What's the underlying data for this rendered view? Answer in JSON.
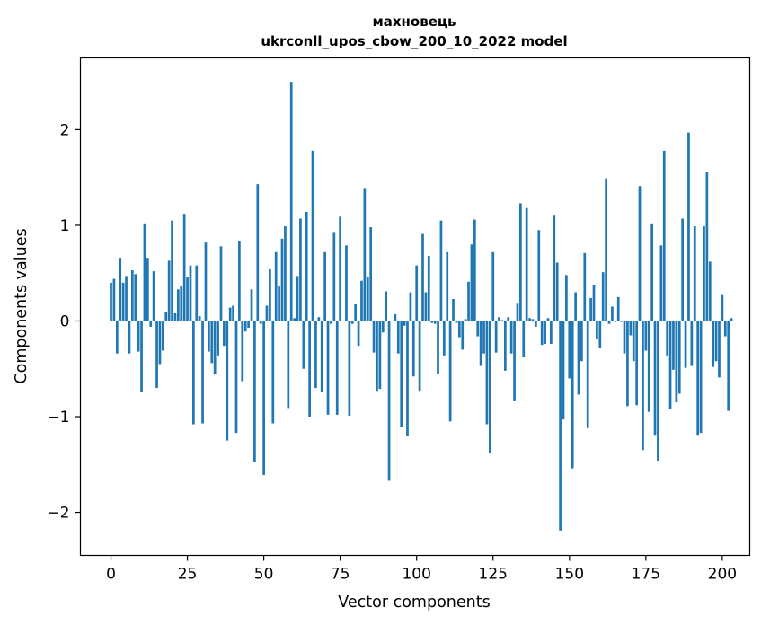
{
  "chart_data": {
    "type": "bar",
    "title_line1": "махновець",
    "title_line2": "ukrconll_upos_cbow_200_10_2022 model",
    "xlabel": "Vector components",
    "ylabel": "Components values",
    "xlim": [
      -10,
      209
    ],
    "ylim": [
      -2.45,
      2.75
    ],
    "xticks": [
      0,
      25,
      50,
      75,
      100,
      125,
      150,
      175,
      200
    ],
    "yticks": [
      -2,
      -1,
      0,
      1,
      2
    ],
    "ytick_labels": [
      "−2",
      "−1",
      "0",
      "1",
      "2"
    ],
    "bar_color": "#1f77b4",
    "values": [
      0.4,
      0.44,
      -0.34,
      0.66,
      0.4,
      0.47,
      -0.34,
      0.53,
      0.49,
      -0.32,
      -0.74,
      1.02,
      0.66,
      -0.06,
      0.52,
      -0.7,
      -0.45,
      -0.31,
      0.09,
      0.63,
      1.05,
      0.08,
      0.33,
      0.36,
      1.12,
      0.46,
      0.58,
      -1.08,
      0.58,
      0.05,
      -1.07,
      0.82,
      -0.32,
      -0.44,
      -0.56,
      -0.36,
      0.78,
      -0.26,
      -1.25,
      0.14,
      0.16,
      -1.17,
      0.84,
      -0.63,
      -0.11,
      -0.07,
      0.33,
      -1.47,
      1.43,
      -0.03,
      -1.61,
      0.16,
      0.54,
      -1.07,
      0.72,
      0.36,
      0.86,
      0.99,
      -0.91,
      2.5,
      0.03,
      0.47,
      1.07,
      -0.5,
      1.14,
      -1.0,
      1.78,
      -0.7,
      0.04,
      -0.74,
      0.72,
      -0.98,
      -0.03,
      0.93,
      -0.98,
      1.09,
      0.0,
      0.79,
      -0.99,
      -0.03,
      0.18,
      -0.26,
      0.42,
      1.39,
      0.46,
      0.98,
      -0.33,
      -0.73,
      -0.71,
      -0.12,
      0.31,
      -1.67,
      0.0,
      0.07,
      -0.34,
      -1.11,
      -0.05,
      -1.2,
      0.3,
      -0.58,
      0.58,
      -0.73,
      0.91,
      0.3,
      0.68,
      -0.02,
      -0.03,
      -0.55,
      1.05,
      -0.36,
      0.72,
      -1.05,
      0.23,
      -0.02,
      -0.17,
      -0.3,
      0.02,
      0.41,
      0.8,
      1.06,
      -0.16,
      -0.47,
      -0.34,
      -1.08,
      -1.38,
      0.72,
      -0.33,
      0.04,
      0.01,
      -0.52,
      0.04,
      -0.34,
      -0.83,
      0.19,
      1.23,
      -0.38,
      1.18,
      0.03,
      0.02,
      -0.06,
      0.95,
      -0.25,
      -0.24,
      0.03,
      -0.24,
      1.11,
      0.61,
      -2.19,
      -1.03,
      0.48,
      -0.6,
      -1.54,
      0.3,
      -0.77,
      -0.42,
      0.71,
      -1.12,
      0.24,
      0.38,
      -0.19,
      -0.28,
      0.51,
      1.49,
      -0.03,
      0.15,
      -0.01,
      0.25,
      -0.01,
      -0.34,
      -0.89,
      -0.15,
      -0.42,
      -0.88,
      1.41,
      -1.35,
      -0.31,
      -0.95,
      1.02,
      -1.19,
      -1.46,
      0.79,
      1.78,
      -0.36,
      -0.92,
      -0.51,
      -0.85,
      -0.76,
      1.07,
      -0.49,
      1.97,
      -0.47,
      0.99,
      -1.19,
      -1.17,
      0.99,
      1.56,
      0.62,
      -0.48,
      -0.42,
      -0.59,
      0.28,
      -0.16,
      -0.94,
      0.03
    ]
  }
}
